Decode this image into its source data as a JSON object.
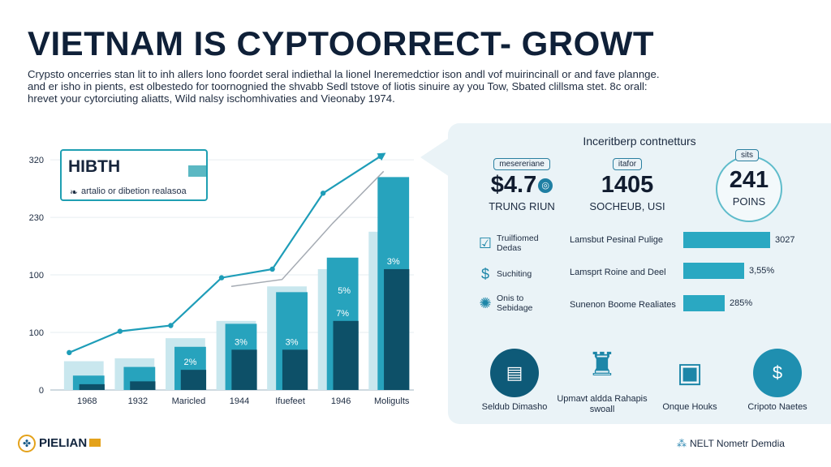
{
  "header": {
    "title": "VIETNAM IS CYPTOORRECT- GROWT",
    "intro_lines": [
      "Crypsto oncerries stan lit to inh allers lono foordet seral indiethal la lionel Ineremedctior ison andl vof muirincinall or and fave plannge.",
      "and er isho in pients, est olbestedo for toornognied the shvabb Sedl tstove of liotis sinuire ay you Tow, Sbated clillsma stet. 8c orall:",
      "hrevet your cytorciuting aliatts, Wild nalsy ischomhivaties and Vieonaby 1974."
    ]
  },
  "callout": {
    "title": "HIBTH",
    "subtitle": "artalio or dibetion realasoa"
  },
  "chart_data": {
    "type": "bar",
    "categories": [
      "1968",
      "1932",
      "Maricled",
      "1944",
      "Ifuefeet",
      "1946",
      "Moligults"
    ],
    "y_tick_labels": [
      "0",
      "100",
      "100",
      "230",
      "320"
    ],
    "series": [
      {
        "values": [
          0.5,
          0.55,
          0.9,
          1.2,
          1.8,
          2.1,
          2.75
        ]
      },
      {
        "values": [
          0.25,
          0.4,
          0.75,
          1.15,
          1.7,
          2.3,
          3.7
        ]
      },
      {
        "values": [
          0.1,
          0.15,
          0.35,
          0.7,
          0.7,
          1.2,
          2.1
        ]
      }
    ],
    "bar_labels": [
      "",
      "",
      "2%",
      "3%",
      "3%",
      "7%",
      "3%"
    ],
    "top_labels": [
      "",
      "",
      "",
      "",
      "",
      "5%",
      ""
    ],
    "line_values": [
      0.65,
      1.02,
      1.12,
      1.95,
      2.1,
      3.42,
      4.06
    ],
    "line_values_gray": [
      null,
      null,
      null,
      1.8,
      1.92,
      2.9,
      3.8
    ],
    "ylim": [
      0,
      4.1
    ],
    "colors": [
      "#c9e7ee",
      "#27a3bd",
      "#0d5068"
    ]
  },
  "panel": {
    "heading": "Inceritberp contnetturs",
    "stats": [
      {
        "label": "mesereriane",
        "value": "$4.7",
        "sub": "TRUNG RIUN"
      },
      {
        "label": "itafor",
        "value": "1405",
        "sub": "SOCHEUB, USI"
      },
      {
        "label": "sits",
        "value": "241",
        "sub": "POINS"
      }
    ],
    "rows": [
      {
        "icon": "checklist-icon",
        "text": "Truilfiomed Dedas",
        "bar_label": "Lamsbut Pesinal Pulige",
        "value": "3027",
        "fraction": 0.97
      },
      {
        "icon": "dollar-shield-icon",
        "text": "Suchiting",
        "bar_label": "Lamsprt Roine and Deel",
        "value": "3,55%",
        "fraction": 0.68
      },
      {
        "icon": "network-icon",
        "text": "Onis to Sebidage",
        "bar_label": "Sunenon Boome Realiates",
        "value": "285%",
        "fraction": 0.46
      }
    ],
    "bottom": [
      {
        "icon": "wallet-icon",
        "label": "Seldub Dimasho"
      },
      {
        "icon": "robot-icon",
        "label": "Upmavt aldda Rahapis swoall"
      },
      {
        "icon": "computer-icon",
        "label": "Onque Houks"
      },
      {
        "icon": "coin-icon",
        "label": "Cripoto Naetes"
      }
    ],
    "colors": {
      "bar": "#2aa8c2",
      "panel": "#eaf3f7",
      "dark": "#0e5a78"
    }
  },
  "footer": {
    "left_logo": "PIELIAN",
    "right_logo": "NELT Nometr Demdia"
  }
}
